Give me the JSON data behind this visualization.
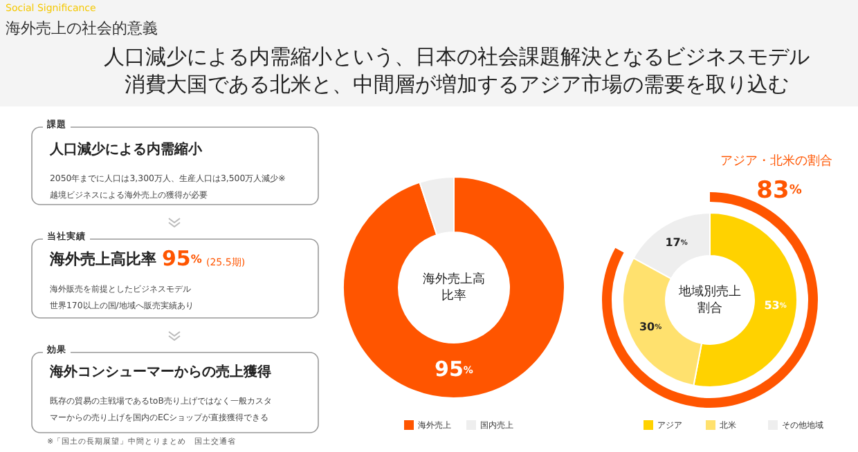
{
  "chart_data": [
    {
      "type": "other",
      "subtitle": "Social Significance",
      "title": "海外売上の社会的意義",
      "annotations": [
        "人口減少による内需縮小という、日本の社会課題解決となるビジネスモデル",
        "消費大国である北米と、中間層が増加するアジア市場の需要を取り込む",
        "課題",
        "人口減少による内需縮小",
        "2050年までに人口は3,300万人、生産人口は3,500万人減少※",
        "越境ビジネスによる海外売上の獲得が必要",
        "当社実績",
        "海外売上高比率",
        "95%",
        "(25.5期)",
        "海外販売を前提としたビジネスモデル",
        "世界170以上の国/地域へ販売実績あり",
        "効果",
        "海外コンシューマーからの売上獲得",
        "既存の貿易の主戦場であるtoB売り上げではなく一般カスタ",
        "マーからの売り上げを国内のECショップが直接獲得できる",
        "※「国土の長期展望」中間とりまとめ　国土交通省"
      ]
    },
    {
      "type": "donut",
      "title": "海外売上高比率",
      "categories": [
        "海外売上",
        "国内売上"
      ],
      "values": [
        95,
        5
      ],
      "colors": [
        "#ff5500",
        "#eeeeee"
      ],
      "value_labels": [
        "95%",
        null
      ],
      "legend": "bottom"
    },
    {
      "type": "donut",
      "title": "地域別売上割合",
      "categories": [
        "アジア",
        "北米",
        "その他地域"
      ],
      "values": [
        53,
        30,
        17
      ],
      "colors": [
        "#ffd200",
        "#ffe16e",
        "#eeeeee"
      ],
      "value_labels": [
        "53%",
        "30%",
        "17%"
      ],
      "legend": "bottom",
      "annotations": [
        "アジア・北米の割合",
        "83%"
      ]
    }
  ]
}
